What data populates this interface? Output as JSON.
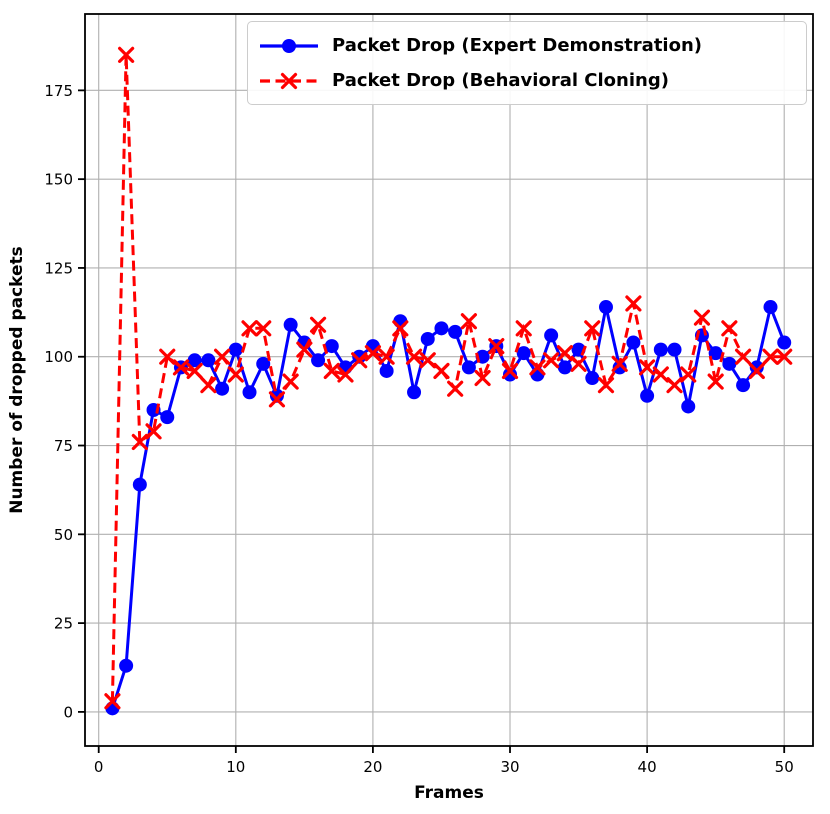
{
  "chart_data": {
    "type": "line",
    "title": "",
    "xlabel": "Frames",
    "ylabel": "Number of dropped packets",
    "grid": true,
    "legend_position": "upper center",
    "xticks": [
      0,
      10,
      20,
      30,
      40,
      50
    ],
    "yticks": [
      0,
      25,
      50,
      75,
      100,
      125,
      150,
      175
    ],
    "xlim": [
      -1.0,
      52.1
    ],
    "ylim": [
      -9.6,
      196.5
    ],
    "x": [
      1,
      2,
      3,
      4,
      5,
      6,
      7,
      8,
      9,
      10,
      11,
      12,
      13,
      14,
      15,
      16,
      17,
      18,
      19,
      20,
      21,
      22,
      23,
      24,
      25,
      26,
      27,
      28,
      29,
      30,
      31,
      32,
      33,
      34,
      35,
      36,
      37,
      38,
      39,
      40,
      41,
      42,
      43,
      44,
      45,
      46,
      47,
      48,
      49,
      50
    ],
    "series": [
      {
        "name": "Packet Drop (Expert Demonstration)",
        "color": "#0000ff",
        "line_style": "solid",
        "marker": "circle",
        "values": [
          1,
          13,
          64,
          85,
          83,
          97,
          99,
          99,
          91,
          102,
          90,
          98,
          89,
          109,
          104,
          99,
          103,
          97,
          100,
          103,
          96,
          110,
          90,
          105,
          108,
          107,
          97,
          100,
          103,
          95,
          101,
          95,
          106,
          97,
          102,
          94,
          114,
          97,
          104,
          89,
          102,
          102,
          86,
          106,
          101,
          98,
          92,
          97,
          114,
          104
        ]
      },
      {
        "name": "Packet Drop (Behavioral Cloning)",
        "color": "#ff0000",
        "line_style": "dashed",
        "marker": "x",
        "values": [
          3,
          185,
          76,
          79,
          100,
          97,
          96,
          92,
          100,
          95,
          108,
          108,
          88,
          93,
          102,
          109,
          96,
          95,
          99,
          101,
          100,
          108,
          100,
          99,
          96,
          91,
          110,
          94,
          103,
          96,
          108,
          97,
          99,
          101,
          98,
          108,
          92,
          98,
          115,
          97,
          95,
          92,
          95,
          111,
          93,
          108,
          100,
          96,
          100,
          100
        ]
      }
    ],
    "grid_color": "#b0b0b0",
    "spine_color": "#000000"
  }
}
